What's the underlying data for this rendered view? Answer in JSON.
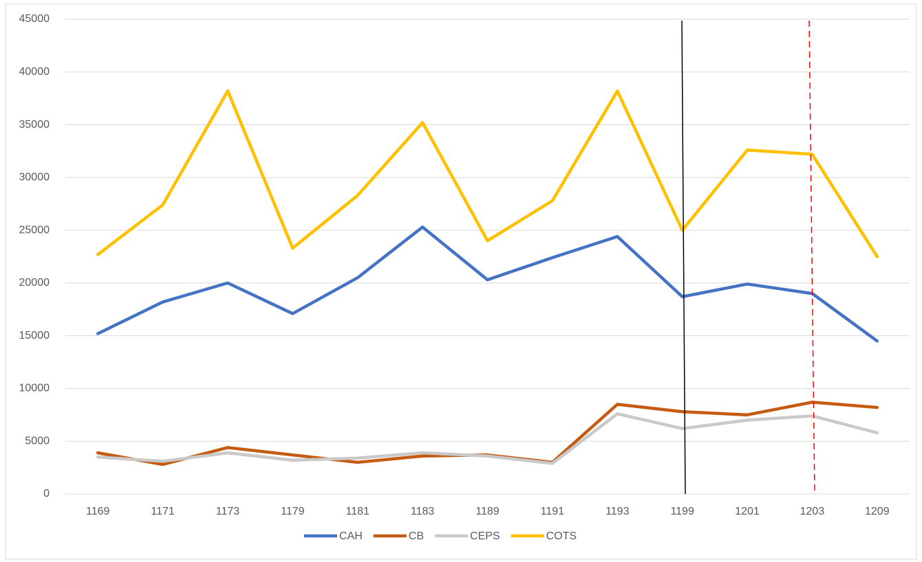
{
  "chart_data": {
    "type": "line",
    "categories": [
      "1169",
      "1171",
      "1173",
      "1179",
      "1181",
      "1183",
      "1189",
      "1191",
      "1193",
      "1199",
      "1201",
      "1203",
      "1209"
    ],
    "series": [
      {
        "name": "CAH",
        "color": "#4472c4",
        "values": [
          15200,
          18200,
          20000,
          17100,
          20500,
          25300,
          20300,
          22400,
          24400,
          18700,
          19900,
          19000,
          14500
        ]
      },
      {
        "name": "CB",
        "color": "#c55a11",
        "values": [
          3900,
          2800,
          4400,
          3700,
          3000,
          3600,
          3700,
          3000,
          8500,
          7800,
          7500,
          8700,
          8200
        ]
      },
      {
        "name": "CEPS",
        "color": "#c9c9c9",
        "values": [
          3500,
          3100,
          3900,
          3200,
          3400,
          3900,
          3600,
          2900,
          7600,
          6200,
          7000,
          7400,
          5800
        ]
      },
      {
        "name": "COTS",
        "color": "#ffc000",
        "values": [
          22700,
          27400,
          38200,
          23300,
          28300,
          35200,
          24000,
          27800,
          38200,
          25000,
          32600,
          32200,
          22500
        ]
      }
    ],
    "ylim": [
      0,
      45000
    ],
    "yticks": [
      0,
      5000,
      10000,
      15000,
      20000,
      25000,
      30000,
      35000,
      40000,
      45000
    ],
    "grid": true,
    "legend": "bottom"
  }
}
